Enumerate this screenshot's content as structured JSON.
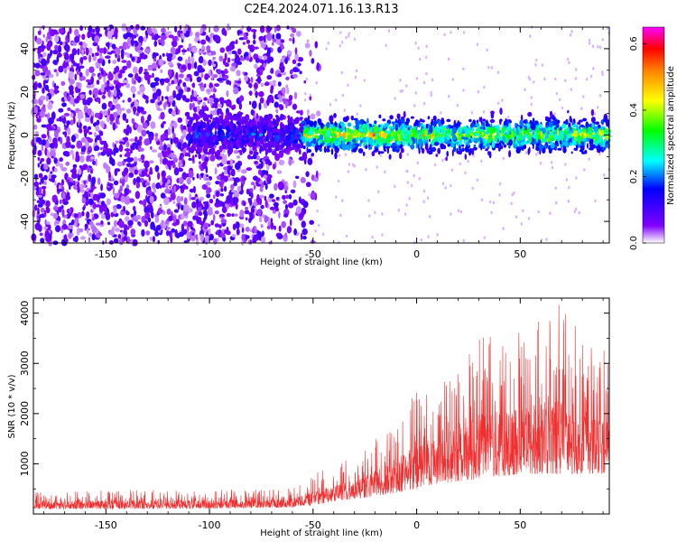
{
  "title": "C2E4.2024.071.16.13.R13",
  "chart_data": [
    {
      "type": "heatmap",
      "title": "C2E4.2024.071.16.13.R13",
      "xlabel": "Height of straight line (km)",
      "ylabel": "Frequency (Hz)",
      "xlim": [
        -185,
        93
      ],
      "ylim": [
        -50,
        50
      ],
      "x_ticks": [
        -150,
        -100,
        -50,
        0,
        50
      ],
      "y_ticks": [
        -40,
        -20,
        0,
        20,
        40
      ],
      "grid": false,
      "colorbar": {
        "label": "Normalized spectral amplitude",
        "range": [
          0.0,
          0.65
        ],
        "ticks": [
          0.0,
          0.2,
          0.4,
          0.6
        ],
        "colormap": [
          "#ffffff",
          "#8000ff",
          "#0000ff",
          "#00ffff",
          "#00ff00",
          "#ffff00",
          "#ff8000",
          "#ff0000",
          "#ff00ff"
        ]
      },
      "regions": [
        {
          "x_range": [
            -185,
            -55
          ],
          "freq_center": 0,
          "freq_spread": 50,
          "amplitude": [
            0.02,
            0.12
          ],
          "density": "dense broadband"
        },
        {
          "x_range": [
            -55,
            93
          ],
          "freq_center": 0,
          "freq_spread": 8,
          "amplitude": [
            0.1,
            0.45
          ],
          "density": "narrow band near 0 Hz"
        }
      ]
    },
    {
      "type": "line",
      "xlabel": "Height of straight line (km)",
      "ylabel": "SNR (10 * v/v)",
      "xlim": [
        -185,
        93
      ],
      "ylim": [
        0,
        4300
      ],
      "x_ticks": [
        -150,
        -100,
        -50,
        0,
        50
      ],
      "y_ticks": [
        1000,
        2000,
        3000,
        4000
      ],
      "grid": false,
      "color": "#f03030",
      "envelope": {
        "x": [
          -185,
          -150,
          -100,
          -60,
          -50,
          -40,
          -30,
          -20,
          -10,
          0,
          10,
          20,
          30,
          40,
          50,
          60,
          70,
          80,
          93
        ],
        "baseline": [
          100,
          100,
          110,
          130,
          180,
          250,
          300,
          350,
          420,
          500,
          600,
          650,
          700,
          750,
          800,
          800,
          800,
          800,
          800
        ],
        "peak": [
          450,
          480,
          480,
          520,
          800,
          1000,
          1150,
          1500,
          1900,
          2500,
          2500,
          2900,
          3600,
          3500,
          3700,
          3900,
          4300,
          3500,
          3300
        ]
      }
    }
  ]
}
